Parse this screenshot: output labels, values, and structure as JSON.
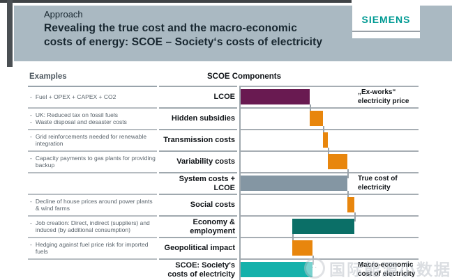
{
  "header": {
    "kicker": "Approach",
    "title_line1": "Revealing the true cost and the macro-economic",
    "title_line2": "costs of energy: SCOE – Society‘s costs of electricity",
    "brand": "SIEMENS"
  },
  "examples_heading": "Examples",
  "chart_heading": "SCOE Components",
  "watermark": {
    "logo": "smiley-face-circle",
    "text": "国际能源小数据"
  },
  "palette": {
    "header_band": "#aab9c2",
    "brand_teal": "#009a93",
    "lcoe_purple": "#691a51",
    "cost_orange": "#e8860d",
    "system_gray": "#8496a3",
    "benefit_teal_dark": "#0b6f67",
    "scoe_cyan": "#15b1ab",
    "grid_line": "#a0a8ad"
  },
  "chart_data": {
    "type": "bar",
    "subtype": "horizontal-waterfall",
    "title": "SCOE Components",
    "xlabel": "",
    "ylabel": "",
    "unit": "relative cost (LCOE = 100), estimated from bar lengths; no numeric axis shown",
    "xlim": [
      0,
      257
    ],
    "grid": "horizontal row separators on, no axis ticks",
    "legend_position": "none",
    "rows": [
      {
        "label": "LCOE",
        "start": 0,
        "end": 100,
        "color": "#691a51",
        "annotation": "„Ex-works“ electricity price",
        "examples": [
          "Fuel + OPEX + CAPEX + CO2"
        ]
      },
      {
        "label": "Hidden subsidies",
        "start": 100,
        "end": 119,
        "connect": 100,
        "color": "#e8860d",
        "examples": [
          "UK: Reduced tax on fossil fuels",
          "Waste disposal and desaster costs"
        ]
      },
      {
        "label": "Transmission costs",
        "start": 119,
        "end": 126,
        "connect": 119,
        "color": "#e8860d",
        "examples": [
          "Grid reinforcements needed for renewable integration"
        ]
      },
      {
        "label": "Variability costs",
        "start": 126,
        "end": 154,
        "connect": 126,
        "color": "#e8860d",
        "examples": [
          "Capacity payments to gas plants for providing backup"
        ]
      },
      {
        "label": "System costs + LCOE",
        "start": 0,
        "end": 154,
        "connect": 154,
        "color": "#8496a3",
        "annotation": "True cost of electricity",
        "examples": []
      },
      {
        "label": "Social costs",
        "start": 154,
        "end": 164,
        "connect": 154,
        "color": "#e8860d",
        "examples": [
          "Decline of house prices around power plants & wind farms"
        ]
      },
      {
        "label": "Economy & employment",
        "start": 164,
        "end": 75,
        "connect": 164,
        "color": "#0b6f67",
        "examples": [
          "Job creation: Direct, indirect (suppliers) and induced (by additional consumption)"
        ]
      },
      {
        "label": "Geopolitical impact",
        "start": 75,
        "end": 104,
        "connect": 75,
        "color": "#e8860d",
        "examples": [
          "Hedging against fuel price risk for imported fuels"
        ]
      },
      {
        "label": "SCOE: Society's costs of electricity",
        "start": 0,
        "end": 104,
        "connect": 104,
        "color": "#15b1ab",
        "annotation": "Macro-economic cost of electricity",
        "examples": []
      }
    ]
  }
}
